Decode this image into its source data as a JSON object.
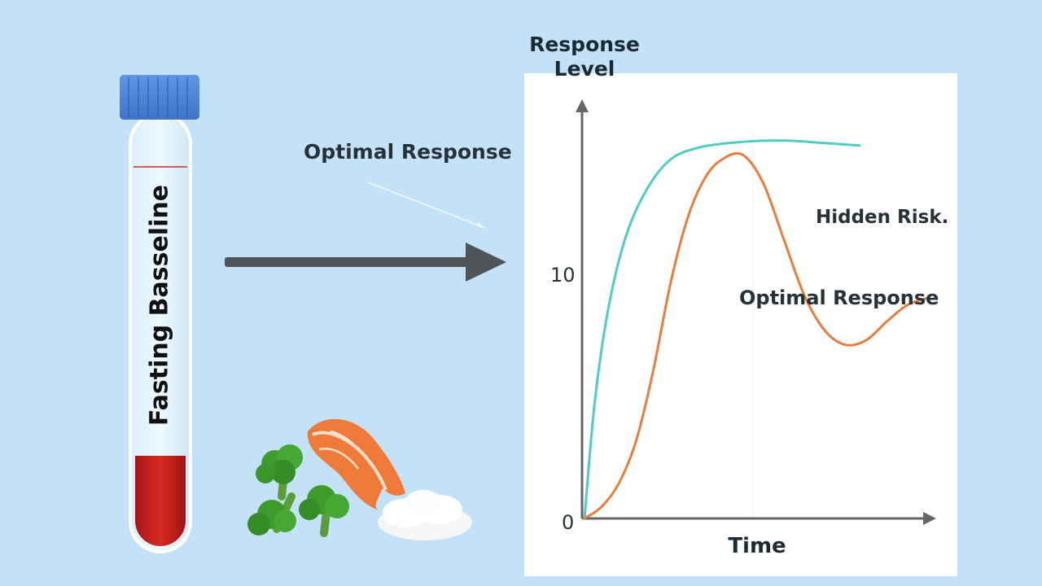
{
  "tube": {
    "label": "Fasting Basseline"
  },
  "callout": {
    "label": "Optimal Response"
  },
  "chart_data": {
    "type": "line",
    "ylabel": "Response Level",
    "xlabel": "Time",
    "ytick_labels": [
      "0",
      "10"
    ],
    "ylim": [
      0,
      17
    ],
    "xlim": [
      0,
      1
    ],
    "grid": false,
    "annotations": [
      "Hidden Risk.",
      "Optimal Response"
    ],
    "series": [
      {
        "color": "#4ecdc4",
        "x": [
          0,
          0.03,
          0.07,
          0.12,
          0.18,
          0.25,
          0.33,
          0.42,
          0.52,
          0.6,
          0.7,
          0.8
        ],
        "y": [
          0,
          5,
          9,
          12,
          14,
          15.3,
          15.8,
          16.0,
          16.1,
          16.1,
          16.0,
          15.9
        ]
      },
      {
        "color": "#e87d3e",
        "x": [
          0,
          0.05,
          0.1,
          0.15,
          0.2,
          0.25,
          0.3,
          0.35,
          0.4,
          0.46,
          0.52,
          0.58,
          0.64,
          0.7,
          0.76,
          0.82,
          0.88,
          0.94,
          1.0
        ],
        "y": [
          0,
          0.5,
          1.5,
          3.3,
          6.3,
          10.0,
          12.8,
          14.5,
          15.3,
          15.5,
          14.3,
          11.9,
          9.5,
          8.0,
          7.4,
          7.6,
          8.4,
          9.1,
          9.4
        ]
      }
    ]
  }
}
